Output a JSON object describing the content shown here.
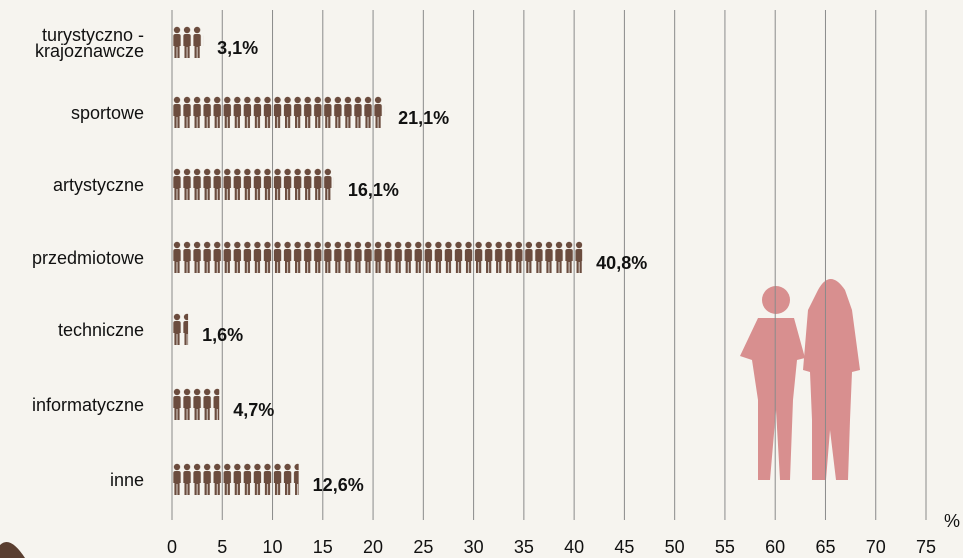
{
  "chart_data": {
    "type": "pictogram-bar",
    "categories": [
      "turystyczno -\nkrajoznawcze",
      "sportowe",
      "artystyczne",
      "przedmiotowe",
      "techniczne",
      "informatyczne",
      "inne"
    ],
    "values": [
      3.1,
      21.1,
      16.1,
      40.8,
      1.6,
      4.7,
      12.6
    ],
    "value_labels": [
      "3,1%",
      "21,1%",
      "16,1%",
      "40,8%",
      "1,6%",
      "4,7%",
      "12,6%"
    ],
    "color": "#6b4c3e",
    "xlim": [
      0,
      75
    ],
    "xticks": [
      0,
      5,
      10,
      15,
      20,
      25,
      30,
      35,
      40,
      45,
      50,
      55,
      60,
      65,
      70,
      75
    ],
    "x_unit": "%",
    "grid": true
  }
}
